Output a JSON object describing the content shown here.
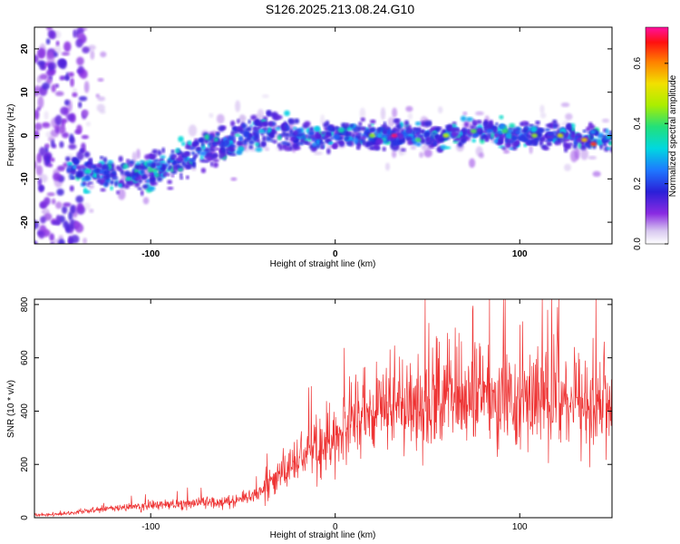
{
  "title": "S126.2025.213.08.24.G10",
  "colors": {
    "snr_line": "#ee3333",
    "frame": "#000000"
  },
  "chart_data": [
    {
      "type": "heatmap",
      "xlabel": "Height of straight line (km)",
      "ylabel": "Frequency (Hz)",
      "xlim": [
        -163,
        150
      ],
      "ylim": [
        -25,
        25
      ],
      "x_ticks": [
        -100,
        0,
        100
      ],
      "y_ticks": [
        -20,
        -10,
        0,
        10,
        20
      ],
      "colorbar": {
        "label": "Normalized spectral amplitude",
        "range": [
          0.0,
          0.72
        ],
        "ticks": [
          "0.0",
          "0.2",
          "0.4",
          "0.6"
        ],
        "tick_values": [
          0.0,
          0.2,
          0.4,
          0.6
        ],
        "colormap": "rainbow (white-lavender, purple, blue, cyan, green, yellow, orange, red, magenta)"
      },
      "ridge": {
        "description": "frequency of the strongest energy band vs height",
        "x": [
          -140,
          -120,
          -110,
          -100,
          -90,
          -80,
          -70,
          -60,
          -50,
          -40,
          -30,
          -20,
          -10,
          0,
          20,
          40,
          60,
          80,
          100,
          120,
          140,
          150
        ],
        "y": [
          -8,
          -9,
          -9,
          -8,
          -7,
          -5,
          -3,
          -2,
          0,
          1,
          1,
          0,
          -1,
          0,
          0,
          0,
          0,
          1,
          0,
          0,
          -1,
          -1
        ]
      }
    },
    {
      "type": "line",
      "xlabel": "Height of straight line (km)",
      "ylabel": "SNR (10 * v/v)",
      "xlim": [
        -163,
        150
      ],
      "ylim": [
        0,
        820
      ],
      "x_ticks": [
        -100,
        0,
        100
      ],
      "y_ticks": [
        0,
        200,
        400,
        600,
        800
      ],
      "series": [
        {
          "x": [
            -163,
            -150,
            -140,
            -130,
            -120,
            -110,
            -100,
            -90,
            -80,
            -70,
            -60,
            -50,
            -40,
            -30,
            -20,
            -10,
            0,
            10,
            20,
            30,
            40,
            50,
            60,
            70,
            80,
            90,
            100,
            110,
            120,
            130,
            140,
            150
          ],
          "values": [
            10,
            12,
            20,
            28,
            35,
            40,
            45,
            50,
            55,
            58,
            62,
            70,
            100,
            160,
            230,
            270,
            300,
            360,
            400,
            420,
            430,
            440,
            450,
            440,
            450,
            460,
            430,
            440,
            450,
            440,
            430,
            440
          ]
        }
      ]
    }
  ]
}
